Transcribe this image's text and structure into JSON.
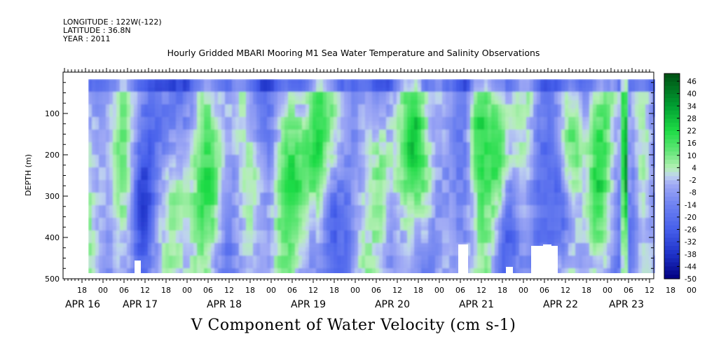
{
  "header": {
    "longitude": "LONGITUDE : 122W(-122)",
    "latitude": "LATITUDE : 36.8N",
    "year": "YEAR : 2011"
  },
  "chart_data": {
    "type": "heatmap",
    "title": "Hourly Gridded MBARI Mooring M1 Sea Water Temperature and Salinity Observations",
    "bottom_title": "V Component of Water Velocity (cm s-1)",
    "ylabel": "DEPTH (m)",
    "ylim": [
      0,
      500
    ],
    "y_reversed": true,
    "y_ticks": [
      "100",
      "200",
      "300",
      "400",
      "500"
    ],
    "x_hour_ticks": [
      "18",
      "00",
      "06",
      "12",
      "18",
      "00",
      "06",
      "12",
      "18",
      "00",
      "06",
      "12",
      "18",
      "00",
      "06",
      "12",
      "18",
      "00",
      "06",
      "12",
      "18",
      "00",
      "06",
      "12",
      "18",
      "00",
      "06",
      "12",
      "18",
      "00",
      "06",
      "12"
    ],
    "x_day_labels": [
      "APR 16",
      "APR 17",
      "APR 18",
      "APR 19",
      "APR 20",
      "APR 21",
      "APR 22",
      "APR 23"
    ],
    "colorbar_labels": [
      "46",
      "40",
      "34",
      "28",
      "22",
      "16",
      "10",
      "4",
      "-2",
      "-8",
      "-14",
      "-20",
      "-26",
      "-32",
      "-38",
      "-44",
      "-50"
    ],
    "colorbar_range": [
      -50,
      50
    ],
    "grid": false,
    "colors": {
      "strong_negative": "#000080",
      "negative": "#6e7cf0",
      "near_zero_neg": "#a8b0f6",
      "near_zero_pos": "#b6f0b6",
      "positive": "#22e84a",
      "strong_positive": "#005a12"
    }
  }
}
